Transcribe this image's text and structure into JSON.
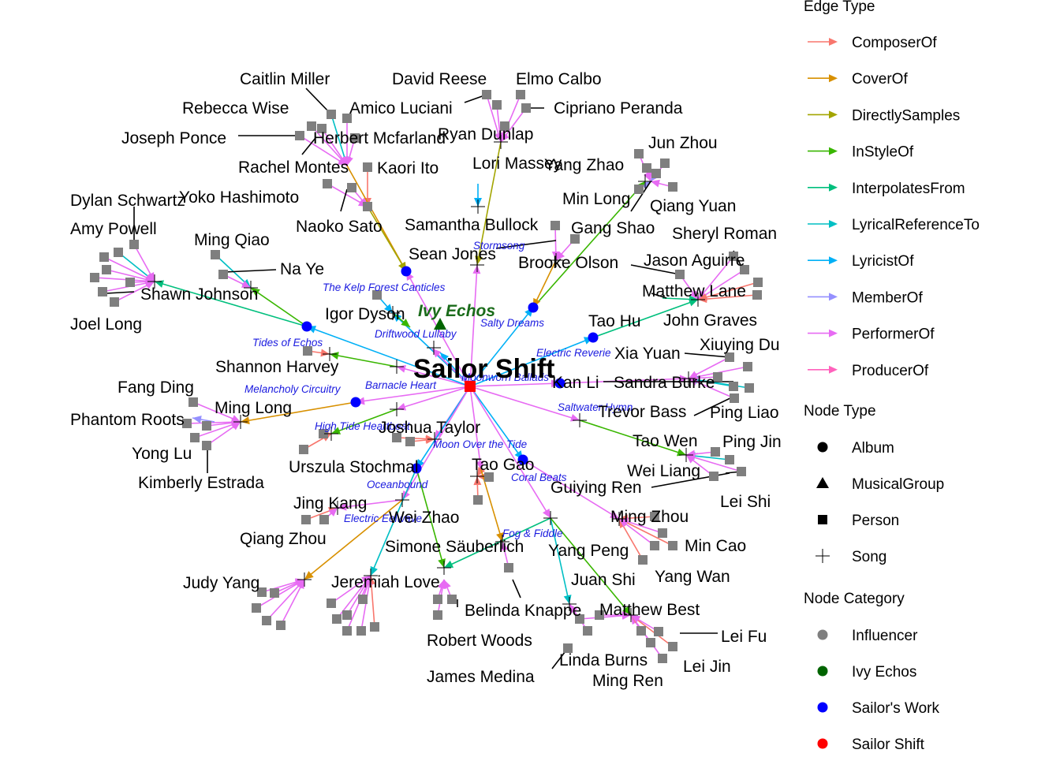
{
  "graph": {
    "main_label": "Sailor Shift",
    "group_label": "Ivy Echos",
    "colors": {
      "influencer": "#7f7f7f",
      "ivy_echos": "#006400",
      "sailors_work": "#0000ff",
      "sailor_shift": "#ff0000"
    },
    "songs": [
      {
        "id": "stormsong",
        "label": "Stormsong"
      },
      {
        "id": "kelp",
        "label": "The Kelp Forest Canticles"
      },
      {
        "id": "salty",
        "label": "Salty Dreams"
      },
      {
        "id": "driftwood",
        "label": "Driftwood Lullaby"
      },
      {
        "id": "tides",
        "label": "Tides of Echos"
      },
      {
        "id": "reverie",
        "label": "Electric Reverie"
      },
      {
        "id": "barnacle",
        "label": "Barnacle Heart"
      },
      {
        "id": "ballads",
        "label": "Moonworn Ballads"
      },
      {
        "id": "melancholy",
        "label": "Melancholy Circuitry"
      },
      {
        "id": "saltwater",
        "label": "Saltwater Hymn"
      },
      {
        "id": "hightide",
        "label": "High Tide Heartbeat"
      },
      {
        "id": "moontide",
        "label": "Moon Over the Tide"
      },
      {
        "id": "oceanbound",
        "label": "Oceanbound"
      },
      {
        "id": "coral",
        "label": "Coral Beats"
      },
      {
        "id": "fogfiddle",
        "label": "Fog & Fiddle"
      },
      {
        "id": "electricedwave",
        "label": "Electric Eelwave"
      }
    ],
    "people": [
      {
        "id": "caitlin",
        "label": "Caitlin Miller"
      },
      {
        "id": "rebecca",
        "label": "Rebecca Wise"
      },
      {
        "id": "joseph",
        "label": "Joseph Ponce"
      },
      {
        "id": "herbert",
        "label": "Herbert Mcfarland"
      },
      {
        "id": "rachel",
        "label": "Rachel Montes"
      },
      {
        "id": "kaori",
        "label": "Kaori Ito"
      },
      {
        "id": "yoko",
        "label": "Yoko Hashimoto"
      },
      {
        "id": "naoko",
        "label": "Naoko Sato"
      },
      {
        "id": "david",
        "label": "David Reese"
      },
      {
        "id": "elmo",
        "label": "Elmo Calbo"
      },
      {
        "id": "amico",
        "label": "Amico Luciani"
      },
      {
        "id": "cipriano",
        "label": "Cipriano Peranda"
      },
      {
        "id": "ryan",
        "label": "Ryan Dunlap"
      },
      {
        "id": "lori",
        "label": "Lori Massey"
      },
      {
        "id": "yangzhao",
        "label": "Yang Zhao"
      },
      {
        "id": "junzhou",
        "label": "Jun Zhou"
      },
      {
        "id": "minlong",
        "label": "Min Long"
      },
      {
        "id": "qiangyuan",
        "label": "Qiang Yuan"
      },
      {
        "id": "samantha",
        "label": "Samantha Bullock"
      },
      {
        "id": "gangshao",
        "label": "Gang Shao"
      },
      {
        "id": "sheryl",
        "label": "Sheryl Roman"
      },
      {
        "id": "seanjones",
        "label": "Sean Jones"
      },
      {
        "id": "brooke",
        "label": "Brooke Olson"
      },
      {
        "id": "jason",
        "label": "Jason Aguirre"
      },
      {
        "id": "matthewlane",
        "label": "Matthew Lane"
      },
      {
        "id": "dylan",
        "label": "Dylan Schwartz"
      },
      {
        "id": "amy",
        "label": "Amy Powell"
      },
      {
        "id": "mingqiao",
        "label": "Ming Qiao"
      },
      {
        "id": "naye",
        "label": "Na Ye"
      },
      {
        "id": "shawn",
        "label": "Shawn Johnson"
      },
      {
        "id": "joel",
        "label": "Joel Long"
      },
      {
        "id": "igor",
        "label": "Igor Dyson"
      },
      {
        "id": "taohu",
        "label": "Tao Hu"
      },
      {
        "id": "johngraves",
        "label": "John Graves"
      },
      {
        "id": "xiayuan",
        "label": "Xia Yuan"
      },
      {
        "id": "xiuying",
        "label": "Xiuying Du"
      },
      {
        "id": "shannon",
        "label": "Shannon Harvey"
      },
      {
        "id": "fangding",
        "label": "Fang Ding"
      },
      {
        "id": "kanli",
        "label": "Kan Li"
      },
      {
        "id": "sandra",
        "label": "Sandra Burke"
      },
      {
        "id": "minglong",
        "label": "Ming Long"
      },
      {
        "id": "phantom",
        "label": "Phantom Roots"
      },
      {
        "id": "trevor",
        "label": "Trevor Bass"
      },
      {
        "id": "pingliao",
        "label": "Ping Liao"
      },
      {
        "id": "joshua",
        "label": "Joshua Taylor"
      },
      {
        "id": "yonglu",
        "label": "Yong Lu"
      },
      {
        "id": "taowen",
        "label": "Tao Wen"
      },
      {
        "id": "pingjin",
        "label": "Ping Jin"
      },
      {
        "id": "kimberly",
        "label": "Kimberly Estrada"
      },
      {
        "id": "urszula",
        "label": "Urszula Stochmal"
      },
      {
        "id": "taogao",
        "label": "Tao Gao"
      },
      {
        "id": "weiliang",
        "label": "Wei Liang"
      },
      {
        "id": "guiying",
        "label": "Guiying Ren"
      },
      {
        "id": "leishi",
        "label": "Lei Shi"
      },
      {
        "id": "jingkang",
        "label": "Jing Kang"
      },
      {
        "id": "weizhao",
        "label": "Wei Zhao"
      },
      {
        "id": "mingzhou",
        "label": "Ming Zhou"
      },
      {
        "id": "qiangzhou",
        "label": "Qiang Zhou"
      },
      {
        "id": "simone",
        "label": "Simone Säuberlich"
      },
      {
        "id": "yangpeng",
        "label": "Yang Peng"
      },
      {
        "id": "mincao",
        "label": "Min Cao"
      },
      {
        "id": "judy",
        "label": "Judy Yang"
      },
      {
        "id": "jeremiah",
        "label": "Jeremiah Love"
      },
      {
        "id": "juanshi",
        "label": "Juan Shi"
      },
      {
        "id": "yangwan",
        "label": "Yang Wan"
      },
      {
        "id": "belinda",
        "label": "Belinda Knappe"
      },
      {
        "id": "matthewbest",
        "label": "Matthew Best"
      },
      {
        "id": "robert",
        "label": "Robert Woods"
      },
      {
        "id": "leifu",
        "label": "Lei Fu"
      },
      {
        "id": "linda",
        "label": "Linda Burns"
      },
      {
        "id": "james",
        "label": "James Medina"
      },
      {
        "id": "mingren",
        "label": "Ming Ren"
      },
      {
        "id": "leijin",
        "label": "Lei Jin"
      }
    ]
  },
  "legend": {
    "edge_type": {
      "title": "Edge Type",
      "items": [
        {
          "label": "ComposerOf",
          "color": "#F8766D"
        },
        {
          "label": "CoverOf",
          "color": "#D89000"
        },
        {
          "label": "DirectlySamples",
          "color": "#A3A500"
        },
        {
          "label": "InStyleOf",
          "color": "#39B600"
        },
        {
          "label": "InterpolatesFrom",
          "color": "#00BF7D"
        },
        {
          "label": "LyricalReferenceTo",
          "color": "#00BFC4"
        },
        {
          "label": "LyricistOf",
          "color": "#00B0F6"
        },
        {
          "label": "MemberOf",
          "color": "#9590FF"
        },
        {
          "label": "PerformerOf",
          "color": "#E76BF3"
        },
        {
          "label": "ProducerOf",
          "color": "#FF62BC"
        }
      ]
    },
    "node_type": {
      "title": "Node Type",
      "items": [
        {
          "label": "Album",
          "shape": "circle"
        },
        {
          "label": "MusicalGroup",
          "shape": "triangle"
        },
        {
          "label": "Person",
          "shape": "square"
        },
        {
          "label": "Song",
          "shape": "cross"
        }
      ]
    },
    "node_category": {
      "title": "Node Category",
      "items": [
        {
          "label": "Influencer",
          "color": "#7f7f7f"
        },
        {
          "label": "Ivy Echos",
          "color": "#006400"
        },
        {
          "label": "Sailor's Work",
          "color": "#0000ff"
        },
        {
          "label": "Sailor Shift",
          "color": "#ff0000"
        }
      ]
    }
  }
}
